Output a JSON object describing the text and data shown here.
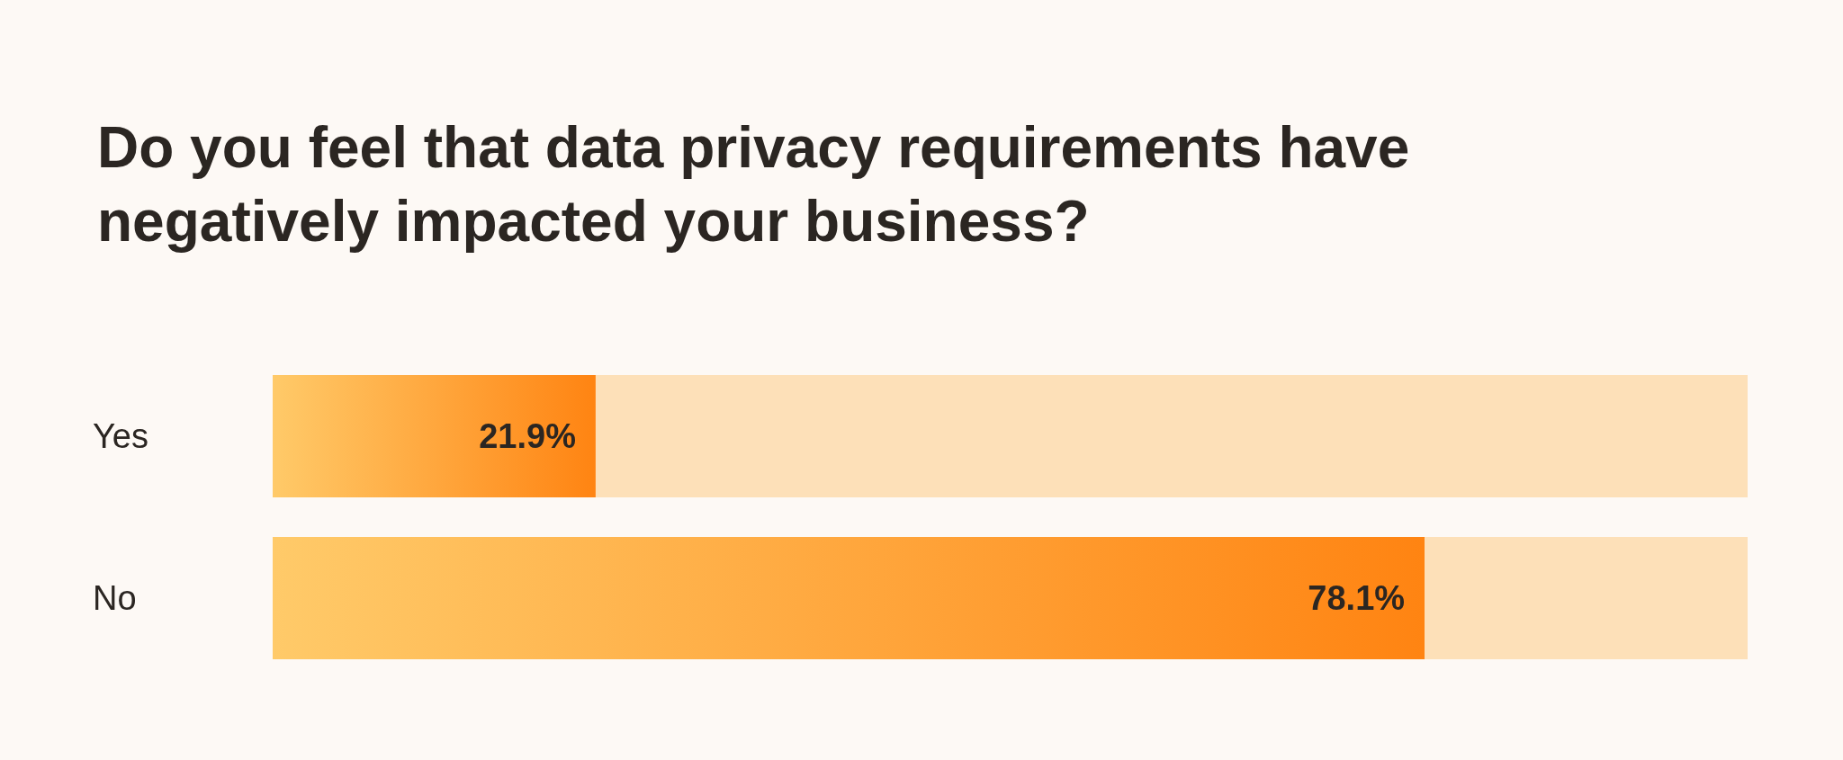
{
  "chart_data": {
    "type": "bar",
    "orientation": "horizontal",
    "stacked": true,
    "title": "Do you feel that data privacy requirements have\nnegatively impacted your business?",
    "categories": [
      "Yes",
      "No"
    ],
    "series": [
      {
        "color": "#ff8412",
        "values": [
          21.9,
          78.1
        ],
        "value_labels": [
          "21.9%",
          "78.1%"
        ]
      },
      {
        "color": "#fde0b8",
        "values": [
          78.1,
          21.9
        ]
      }
    ],
    "xlim": [
      0,
      100
    ],
    "tick_labels": "y",
    "grid": false
  }
}
